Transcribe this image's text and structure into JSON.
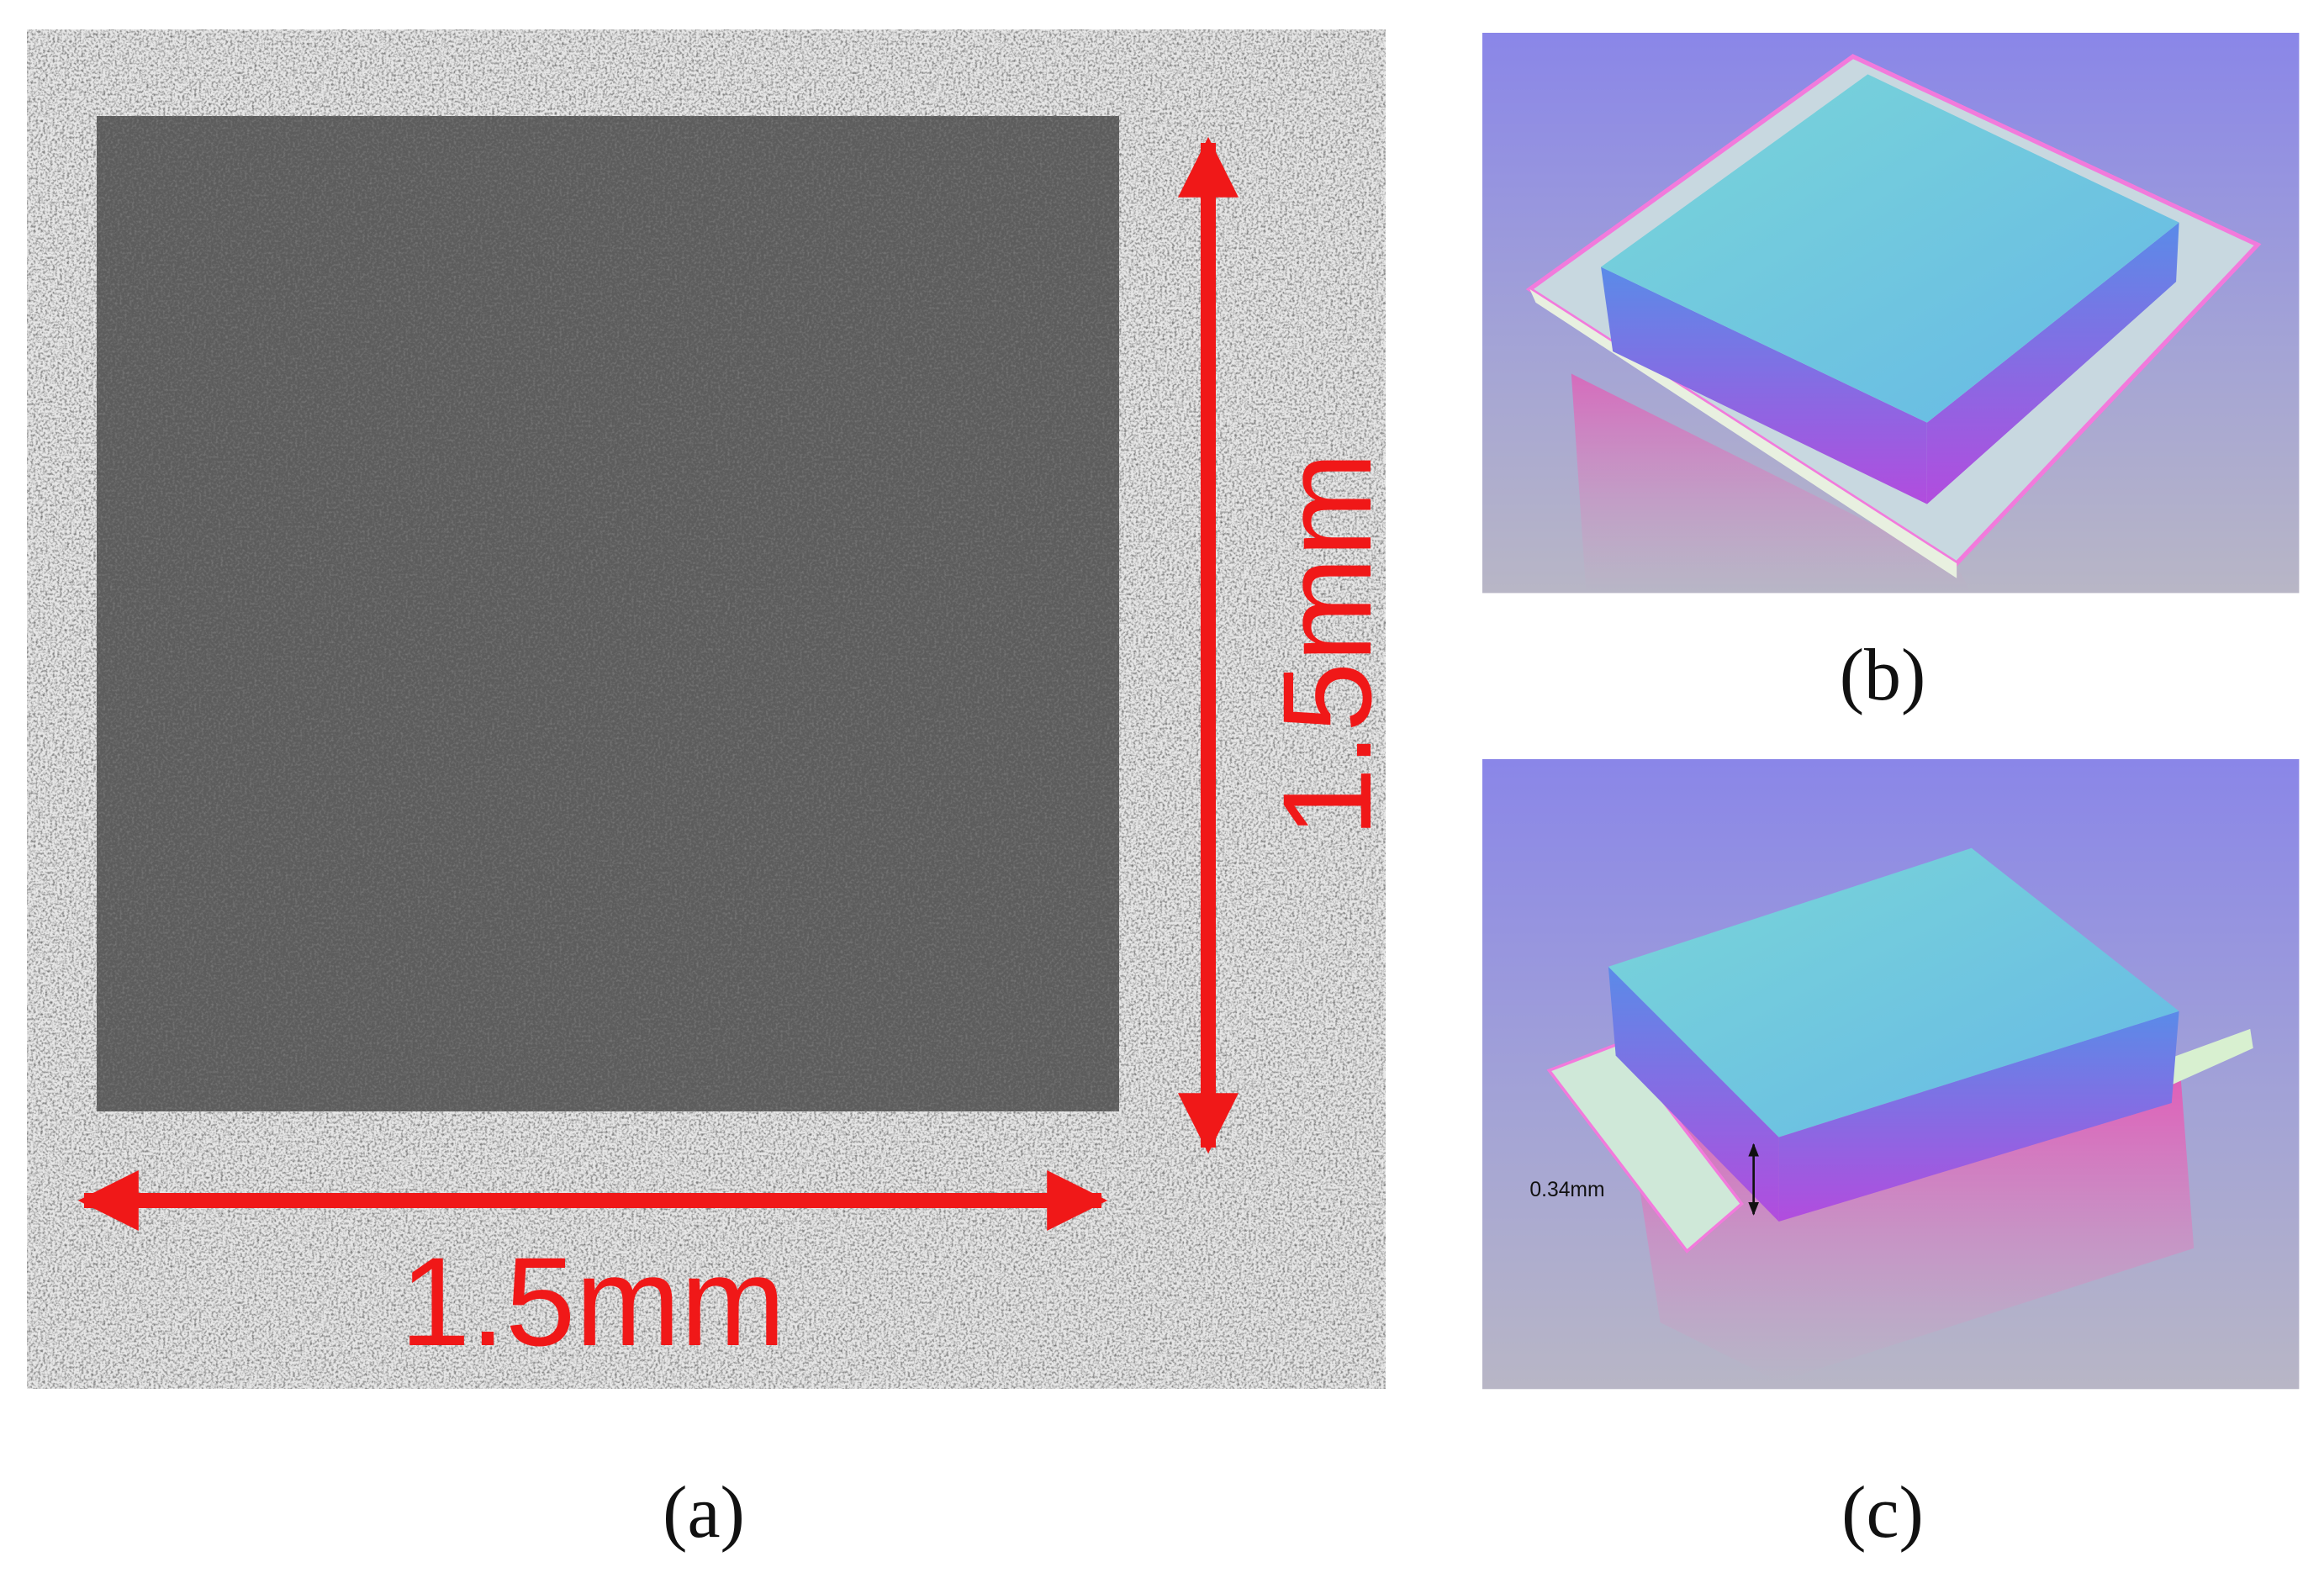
{
  "panels": [
    {
      "label": "(a)",
      "annotations": [
        "1.5mm",
        "1.5mm"
      ]
    },
    {
      "label": "(b)"
    },
    {
      "label": "(c)",
      "annotations": [
        "0.34mm"
      ]
    }
  ]
}
